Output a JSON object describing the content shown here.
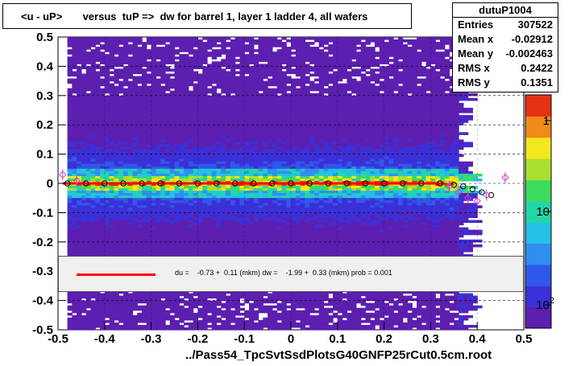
{
  "title": "<u - uP>       versus  tuP =>  dw for barrel 1, layer 1 ladder 4, all wafers",
  "stats": {
    "name": "dutuP1004",
    "rows": [
      {
        "label": "Entries",
        "value": "307522"
      },
      {
        "label": "Mean x",
        "value": "-0.02912"
      },
      {
        "label": "Mean y",
        "value": "-0.002463"
      },
      {
        "label": "RMS x",
        "value": "0.2422"
      },
      {
        "label": "RMS y",
        "value": "0.1351"
      }
    ]
  },
  "fit_legend": "du =    -0.73 +  0.11 (mkm) dw =    -1.99 +  0.33 (mkm) prob = 0.001",
  "footer": "../Pass54_TpcSvtSsdPlotsG40GNFP25rCut0.5cm.root",
  "colors": {
    "fit_line": "#ff0000",
    "profile_black": "#000000",
    "profile_magenta": "#cc44cc"
  },
  "chart_data": {
    "type": "heatmap",
    "xlim": [
      -0.5,
      0.5
    ],
    "ylim": [
      -0.5,
      0.5
    ],
    "x_ticks": [
      "-0.5",
      "-0.4",
      "-0.3",
      "-0.2",
      "-0.1",
      "0",
      "0.1",
      "0.2",
      "0.3",
      "0.4",
      "0.5"
    ],
    "y_ticks": [
      "-0.5",
      "-0.4",
      "-0.3",
      "-0.2",
      "-0.1",
      "0",
      "0.1",
      "0.2",
      "0.3",
      "0.4",
      "0.5"
    ],
    "colorbar": {
      "scale": "log",
      "labels": [
        "1",
        "10",
        "10^2"
      ]
    },
    "grid": true,
    "fit_line": {
      "x": [
        -0.49,
        0.33
      ],
      "y": [
        0.0,
        0.0
      ]
    },
    "profile_black": {
      "x": [
        -0.48,
        -0.44,
        -0.4,
        -0.36,
        -0.32,
        -0.28,
        -0.24,
        -0.2,
        -0.16,
        -0.12,
        -0.08,
        -0.04,
        0.0,
        0.04,
        0.08,
        0.12,
        0.16,
        0.2,
        0.24,
        0.28,
        0.32,
        0.35,
        0.37,
        0.39,
        0.41,
        0.43
      ],
      "y": [
        0.0,
        0.0,
        0.0,
        0.0,
        0.0,
        0.0,
        0.0,
        0.0,
        0.0,
        0.0,
        0.0,
        0.0,
        0.0,
        0.0,
        0.0,
        0.0,
        0.0,
        0.0,
        0.0,
        0.0,
        0.0,
        -0.005,
        -0.01,
        -0.02,
        -0.03,
        -0.04
      ]
    },
    "profile_magenta": {
      "x": [
        -0.49,
        -0.46,
        0.34,
        0.36,
        0.38,
        0.4,
        0.42,
        0.46
      ],
      "y": [
        0.03,
        0.01,
        -0.01,
        -0.03,
        -0.05,
        -0.06,
        -0.04,
        0.02
      ]
    }
  }
}
